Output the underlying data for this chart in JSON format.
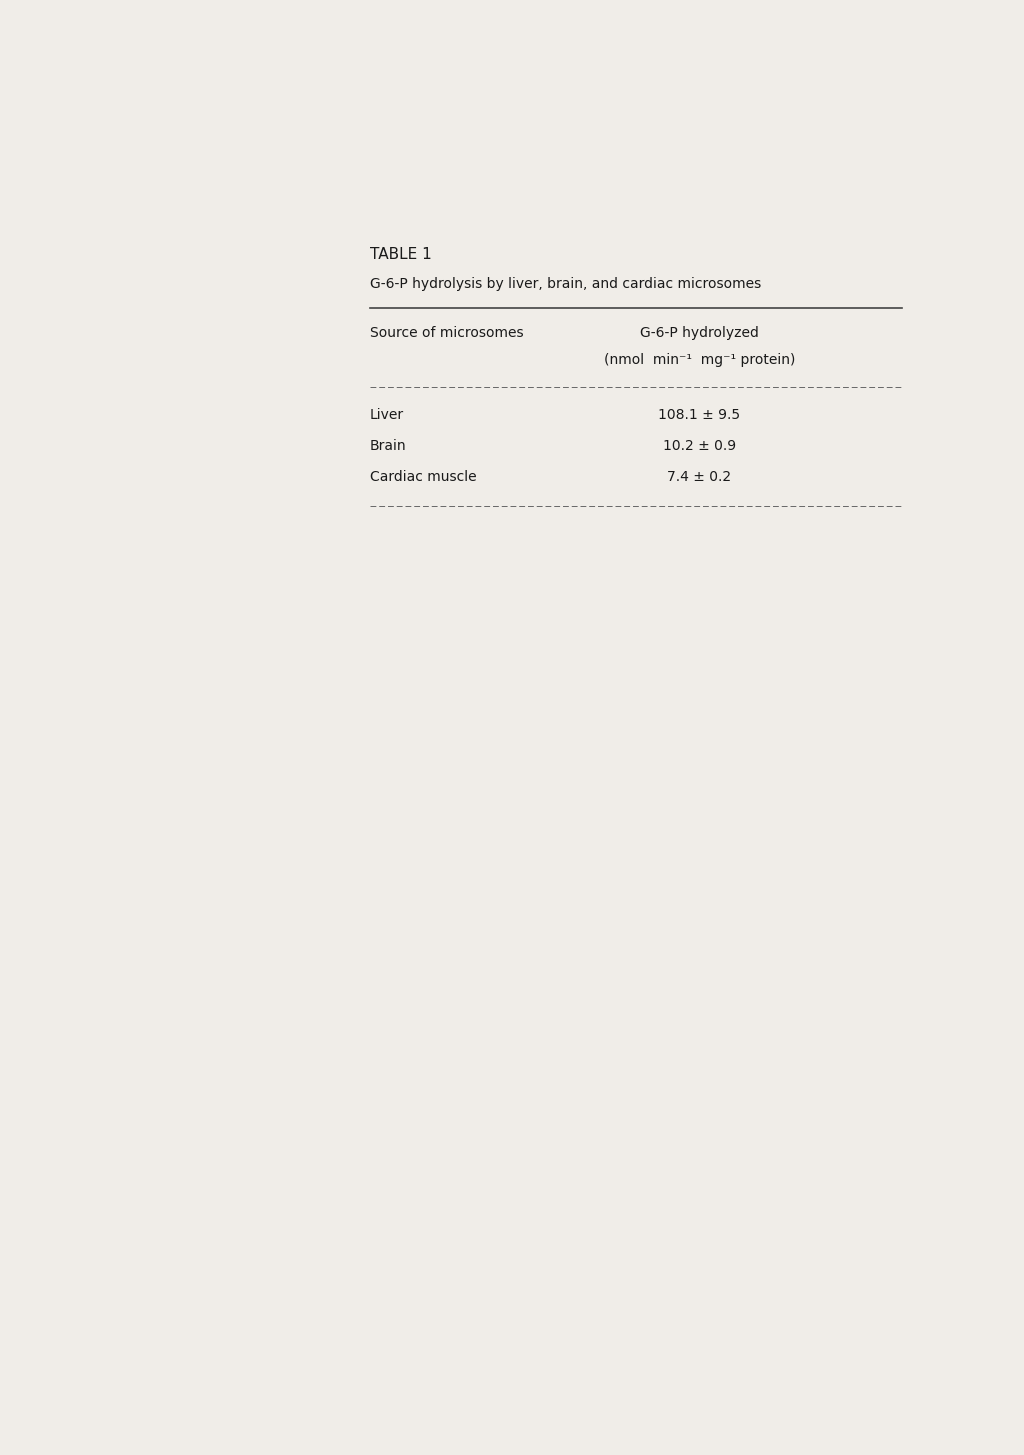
{
  "table_label": "TABLE 1",
  "table_subtitle": "G-6-P hydrolysis by liver, brain, and cardiac microsomes",
  "col1_header": "Source of microsomes",
  "col2_header_line1": "G-6-P hydrolyzed",
  "col2_header_line2": "(nmol  min⁻¹  mg⁻¹ protein)",
  "rows": [
    [
      "Liver",
      "108.1 ± 9.5"
    ],
    [
      "Brain",
      "10.2 ± 0.9"
    ],
    [
      "Cardiac muscle",
      "7.4 ± 0.2"
    ]
  ],
  "bg_color": "#f0ede8",
  "text_color": "#1a1a1a",
  "figsize": [
    10.24,
    14.55
  ],
  "dpi": 100
}
